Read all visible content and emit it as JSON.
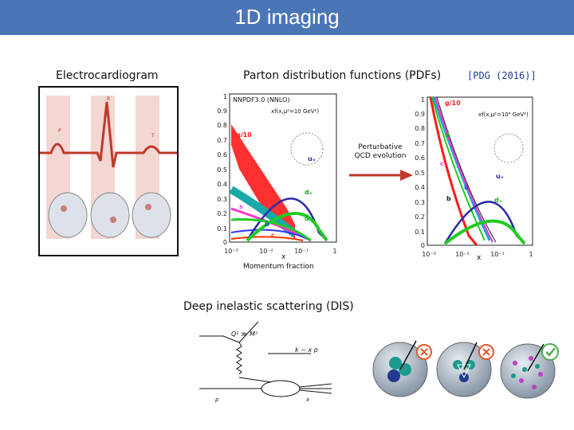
{
  "header": {
    "title": "1D imaging"
  },
  "labels": {
    "ecg": "Electrocardiogram",
    "pdfs": "Parton distribution functions (PDFs)",
    "pdg": "[PDG (2016)]",
    "evolution": "Perturbative\nQCD evolution",
    "momentum": "Momentum fraction",
    "dis": "Deep inelastic scattering (DIS)"
  },
  "pdf_left": {
    "header": "NNPDF3.0 (NNLO)",
    "scale": "xf(x,μ²=10 GeV²)",
    "xaxis": "x",
    "ylabels": [
      "1",
      "0.9",
      "0.8",
      "0.7",
      "0.6",
      "0.5",
      "0.4",
      "0.3",
      "0.2",
      "0.1",
      "0"
    ],
    "xlabels": [
      "10⁻³",
      "10⁻²",
      "10⁻¹",
      "1"
    ],
    "curve_labels": [
      "g/10",
      "uᵥ",
      "dᵥ",
      "s",
      "ū",
      "d̄",
      "c"
    ]
  },
  "pdf_right": {
    "header": "g/10",
    "scale": "xf(x,μ²=10⁴ GeV²)",
    "xaxis": "x",
    "ylabels": [
      "1",
      "0.9",
      "0.8",
      "0.7",
      "0.6",
      "0.5",
      "0.4",
      "0.3",
      "0.2",
      "0.1",
      "0"
    ],
    "xlabels": [
      "10⁻³",
      "10⁻²",
      "10⁻¹",
      "1"
    ],
    "curve_labels": [
      "uᵥ",
      "dᵥ",
      "b",
      "ū",
      "c",
      "d̄"
    ]
  },
  "dis_diagram": {
    "q2": "Q² ≫ M²",
    "k": "k ~ x p",
    "p": "p",
    "x": "x"
  },
  "colors": {
    "title_bar": "#4a76b8",
    "arrow": "#c0392b",
    "check": "#4caf50",
    "cross": "#e05a2a"
  }
}
